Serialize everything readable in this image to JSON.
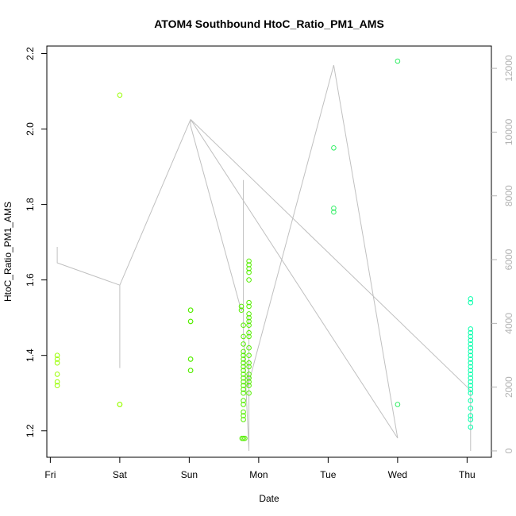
{
  "chart_data": {
    "type": "scatter",
    "title": "ATOM4 Southbound HtoC_Ratio_PM1_AMS",
    "xlabel": "Date",
    "ylabel": "HtoC_Ratio_PM1_AMS",
    "xlim": [
      -0.05,
      6.35
    ],
    "ylim": [
      1.13,
      2.22
    ],
    "y2lim": [
      -200,
      12700
    ],
    "x_ticks": [
      {
        "value": 0,
        "label": "Fri"
      },
      {
        "value": 1,
        "label": "Sat"
      },
      {
        "value": 2,
        "label": "Sun"
      },
      {
        "value": 3,
        "label": "Mon"
      },
      {
        "value": 4,
        "label": "Tue"
      },
      {
        "value": 5,
        "label": "Wed"
      },
      {
        "value": 6,
        "label": "Thu"
      }
    ],
    "y_ticks": [
      1.2,
      1.4,
      1.6,
      1.8,
      2.0,
      2.2
    ],
    "y_tick_labels": [
      "1.2",
      "1.4",
      "1.6",
      "1.8",
      "2.0",
      "2.2"
    ],
    "y2_ticks": [
      0,
      2000,
      4000,
      6000,
      8000,
      10000,
      12000
    ],
    "y2_tick_labels": [
      "0",
      "2000",
      "4000",
      "6000",
      "8000",
      "10000",
      "12000"
    ],
    "grid": false,
    "colors": {
      "line": "#c0c0c0",
      "axis": "#000000",
      "axis_right": "#b3b3b3"
    },
    "series": [
      {
        "kind": "points",
        "color": "#99ff00",
        "points": [
          [
            0.1,
            1.4
          ],
          [
            0.1,
            1.39
          ],
          [
            0.1,
            1.38
          ],
          [
            0.1,
            1.35
          ],
          [
            0.1,
            1.33
          ],
          [
            0.1,
            1.32
          ],
          [
            1.0,
            2.09
          ],
          [
            1.0,
            1.27
          ],
          [
            1.0,
            1.27
          ]
        ]
      },
      {
        "kind": "points",
        "color": "#55ee00",
        "points": [
          [
            2.02,
            1.52
          ],
          [
            2.02,
            1.52
          ],
          [
            2.02,
            1.49
          ],
          [
            2.02,
            1.49
          ],
          [
            2.02,
            1.39
          ],
          [
            2.02,
            1.39
          ],
          [
            2.02,
            1.36
          ],
          [
            2.02,
            1.36
          ],
          [
            2.75,
            1.52
          ],
          [
            2.75,
            1.53
          ],
          [
            2.78,
            1.48
          ],
          [
            2.78,
            1.45
          ],
          [
            2.78,
            1.43
          ],
          [
            2.78,
            1.41
          ],
          [
            2.78,
            1.4
          ],
          [
            2.78,
            1.39
          ],
          [
            2.78,
            1.38
          ],
          [
            2.78,
            1.37
          ],
          [
            2.78,
            1.36
          ],
          [
            2.78,
            1.35
          ],
          [
            2.78,
            1.34
          ],
          [
            2.78,
            1.33
          ],
          [
            2.78,
            1.32
          ],
          [
            2.78,
            1.31
          ],
          [
            2.78,
            1.3
          ],
          [
            2.78,
            1.28
          ],
          [
            2.78,
            1.27
          ],
          [
            2.78,
            1.25
          ],
          [
            2.78,
            1.24
          ],
          [
            2.78,
            1.23
          ],
          [
            2.76,
            1.18
          ],
          [
            2.78,
            1.18
          ],
          [
            2.8,
            1.18
          ],
          [
            2.86,
            1.65
          ],
          [
            2.86,
            1.64
          ],
          [
            2.86,
            1.63
          ],
          [
            2.86,
            1.62
          ],
          [
            2.86,
            1.6
          ],
          [
            2.86,
            1.54
          ],
          [
            2.86,
            1.53
          ],
          [
            2.86,
            1.51
          ],
          [
            2.86,
            1.5
          ],
          [
            2.86,
            1.49
          ],
          [
            2.86,
            1.48
          ],
          [
            2.86,
            1.46
          ],
          [
            2.86,
            1.45
          ],
          [
            2.86,
            1.42
          ],
          [
            2.86,
            1.4
          ],
          [
            2.86,
            1.38
          ],
          [
            2.86,
            1.37
          ],
          [
            2.86,
            1.35
          ],
          [
            2.86,
            1.34
          ],
          [
            2.86,
            1.33
          ],
          [
            2.86,
            1.32
          ],
          [
            2.86,
            1.3
          ]
        ]
      },
      {
        "kind": "points",
        "color": "#33ee66",
        "points": [
          [
            4.08,
            1.95
          ],
          [
            4.08,
            1.79
          ],
          [
            4.08,
            1.78
          ],
          [
            5.0,
            2.18
          ],
          [
            5.0,
            1.27
          ]
        ]
      },
      {
        "kind": "points",
        "color": "#00ffaa",
        "points": [
          [
            6.05,
            1.55
          ],
          [
            6.05,
            1.54
          ],
          [
            6.05,
            1.47
          ],
          [
            6.05,
            1.46
          ],
          [
            6.05,
            1.45
          ],
          [
            6.05,
            1.44
          ],
          [
            6.05,
            1.43
          ],
          [
            6.05,
            1.42
          ],
          [
            6.05,
            1.41
          ],
          [
            6.05,
            1.4
          ],
          [
            6.05,
            1.39
          ],
          [
            6.05,
            1.38
          ],
          [
            6.05,
            1.37
          ],
          [
            6.05,
            1.36
          ],
          [
            6.05,
            1.35
          ],
          [
            6.05,
            1.34
          ],
          [
            6.05,
            1.33
          ],
          [
            6.05,
            1.32
          ],
          [
            6.05,
            1.31
          ],
          [
            6.05,
            1.3
          ],
          [
            6.05,
            1.28
          ],
          [
            6.05,
            1.26
          ],
          [
            6.05,
            1.24
          ],
          [
            6.05,
            1.23
          ],
          [
            6.05,
            1.21
          ]
        ]
      },
      {
        "kind": "line",
        "axis": "right",
        "color": "#c0c0c0",
        "points": [
          [
            0.1,
            6400
          ],
          [
            0.1,
            5900
          ],
          [
            1.0,
            5200
          ],
          [
            1.0,
            2600
          ],
          [
            1.0,
            5200
          ],
          [
            2.02,
            10400
          ],
          [
            2.02,
            10200
          ],
          [
            2.75,
            4400
          ],
          [
            2.78,
            4500
          ],
          [
            2.78,
            8500
          ],
          [
            2.78,
            3700
          ],
          [
            2.86,
            0
          ],
          [
            2.86,
            4200
          ],
          [
            2.86,
            3000
          ],
          [
            2.84,
            2000
          ],
          [
            4.08,
            12100
          ],
          [
            5.0,
            400
          ],
          [
            2.02,
            10400
          ],
          [
            6.05,
            1900
          ],
          [
            6.05,
            0
          ],
          [
            6.05,
            1500
          ],
          [
            6.05,
            300
          ]
        ]
      }
    ]
  }
}
